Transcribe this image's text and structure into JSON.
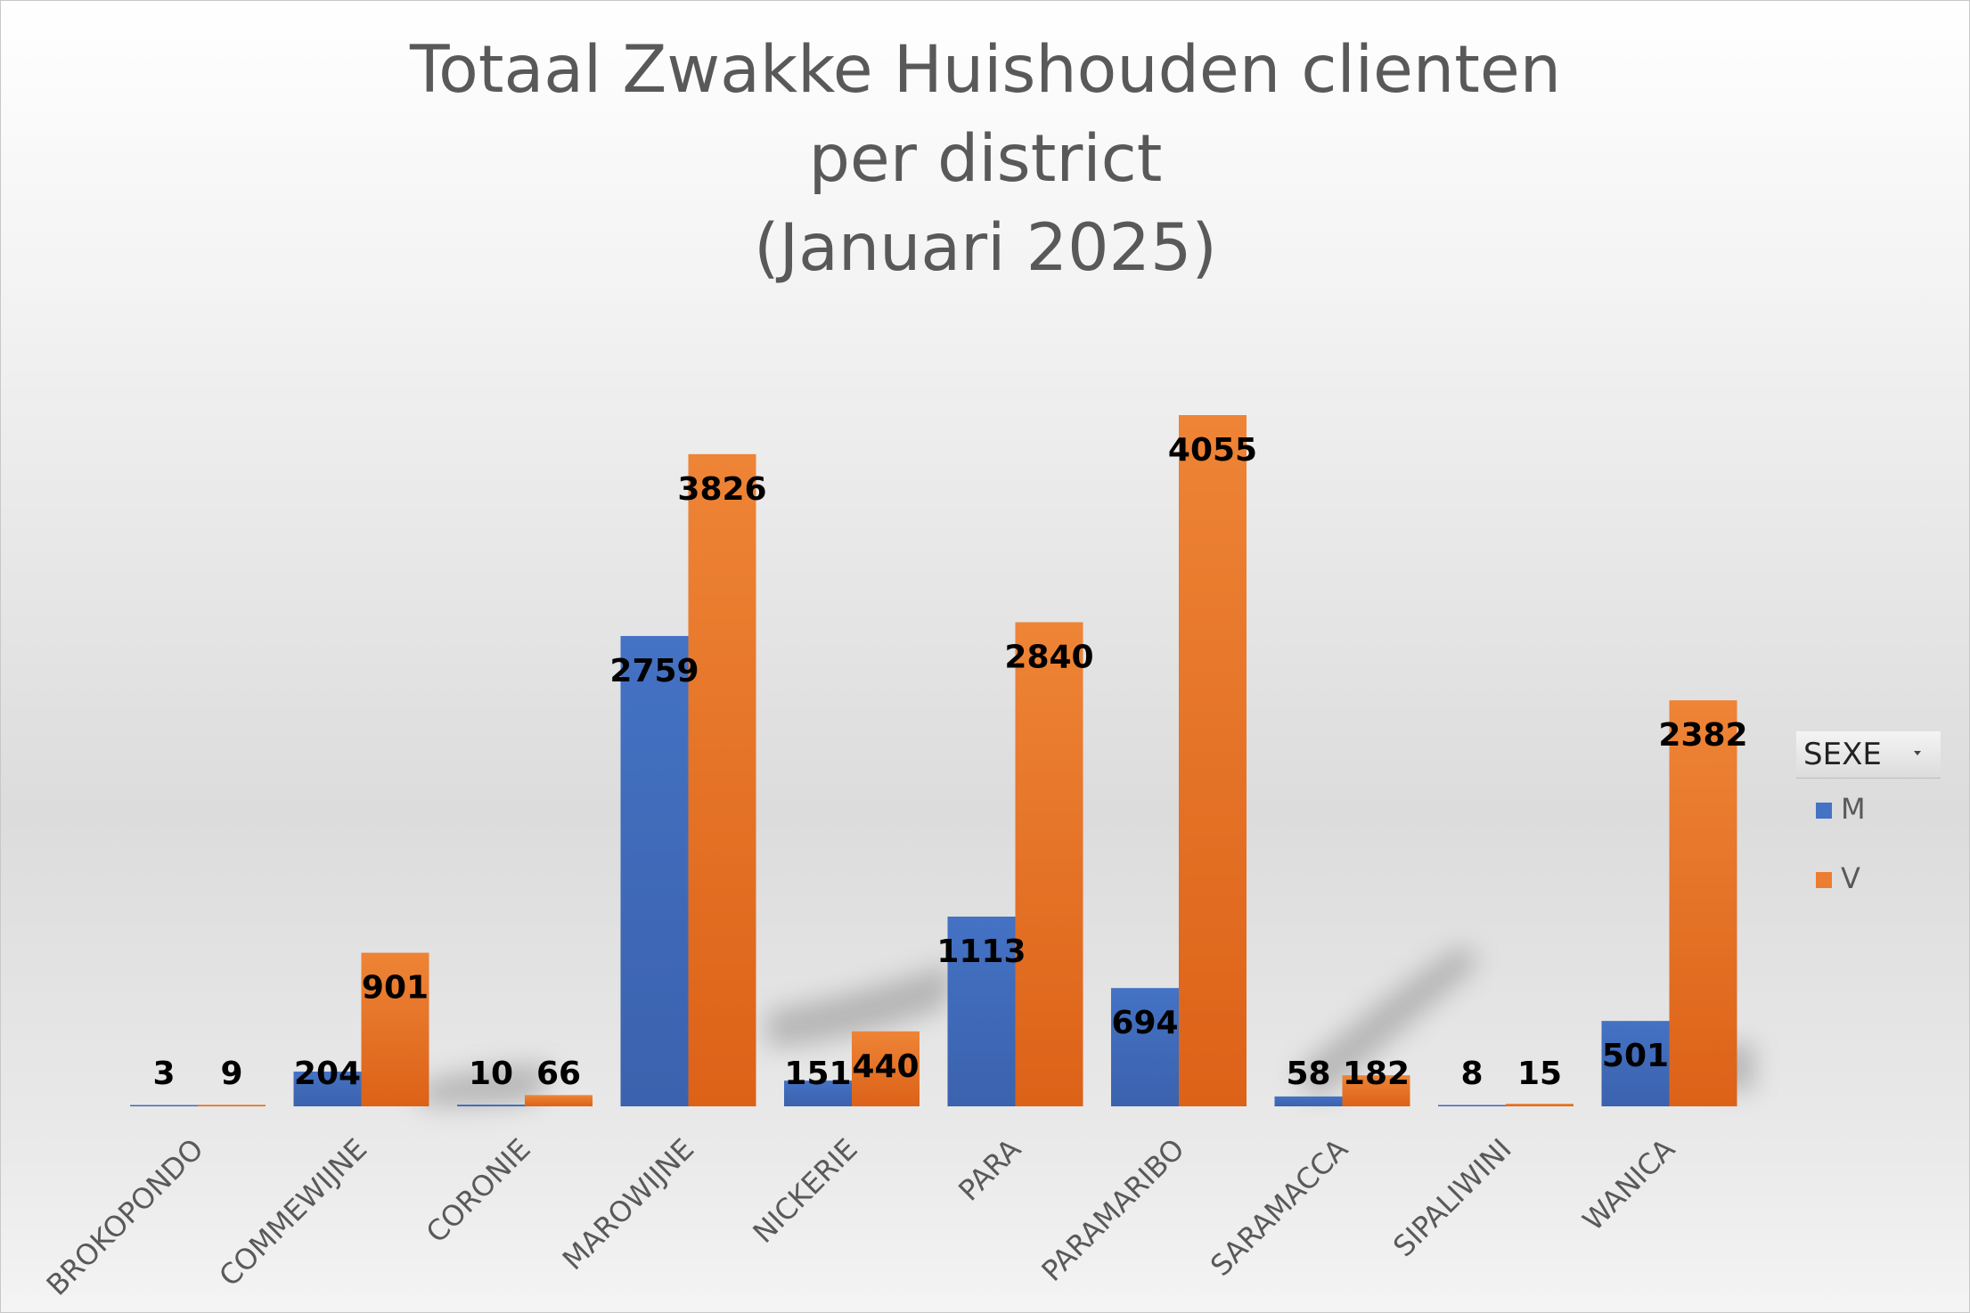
{
  "chart_data": {
    "type": "bar",
    "title": "Totaal Zwakke Huishouden clienten per district (Januari 2025)",
    "title_lines": [
      "Totaal Zwakke Huishouden clienten",
      "per district",
      "(Januari 2025)"
    ],
    "categories": [
      "BROKOPONDO",
      "COMMEWIJNE",
      "CORONIE",
      "MAROWIJNE",
      "NICKERIE",
      "PARA",
      "PARAMARIBO",
      "SARAMACCA",
      "SIPALIWINI",
      "WANICA"
    ],
    "series": [
      {
        "name": "M",
        "color": "#4472C4",
        "values": [
          3,
          204,
          10,
          2759,
          151,
          1113,
          694,
          58,
          8,
          501
        ]
      },
      {
        "name": "V",
        "color": "#ED7D31",
        "values": [
          9,
          901,
          66,
          3826,
          440,
          2840,
          4055,
          182,
          15,
          2382
        ]
      }
    ],
    "ylim": [
      0,
      4055
    ],
    "grid": false,
    "data_labels": true,
    "legend": {
      "title": "SEXE",
      "position": "right"
    }
  }
}
